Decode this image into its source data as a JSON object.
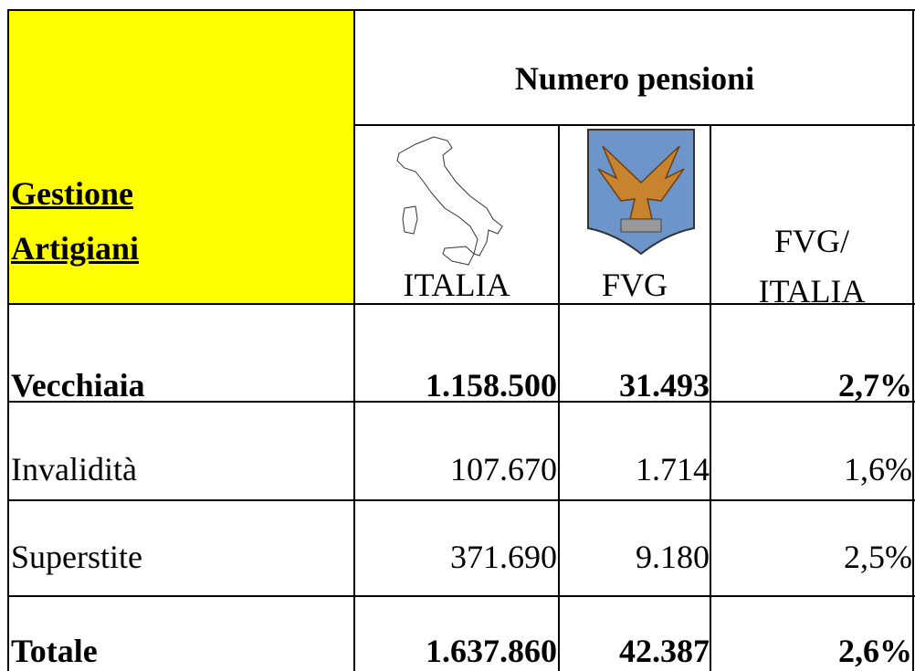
{
  "table": {
    "corner": "Gestione\nArtigiani",
    "group_header": "Numero pensioni",
    "columns": [
      "ITALIA",
      "FVG",
      "FVG/\nITALIA"
    ],
    "rows": [
      [
        "Vecchiaia",
        "1.158.500",
        "31.493",
        "2,7%"
      ],
      [
        "Invalidità",
        "107.670",
        "1.714",
        "1,6%"
      ],
      [
        "Superstite",
        "371.690",
        "9.180",
        "2,5%"
      ],
      [
        "Totale",
        "1.637.860",
        "42.387",
        "2,6%"
      ]
    ]
  }
}
